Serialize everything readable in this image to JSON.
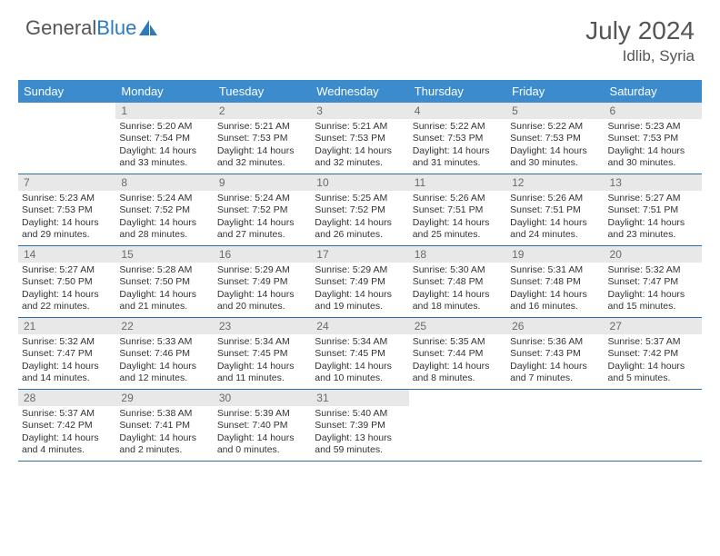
{
  "brand": {
    "part1": "General",
    "part2": "Blue",
    "logo_color": "#2c7bc0"
  },
  "title": {
    "month": "July 2024",
    "location": "Idlib, Syria"
  },
  "colors": {
    "header_bg": "#3b8bcd",
    "header_text": "#ffffff",
    "daynum_bg": "#e8e8e8",
    "daynum_text": "#6a6a6a",
    "week_divider": "#2c6ea9",
    "body_text": "#333333",
    "title_text": "#555555"
  },
  "day_headers": [
    "Sunday",
    "Monday",
    "Tuesday",
    "Wednesday",
    "Thursday",
    "Friday",
    "Saturday"
  ],
  "weeks": [
    [
      {
        "n": "",
        "sr": "",
        "ss": "",
        "dl": ""
      },
      {
        "n": "1",
        "sr": "Sunrise: 5:20 AM",
        "ss": "Sunset: 7:54 PM",
        "dl": "Daylight: 14 hours and 33 minutes."
      },
      {
        "n": "2",
        "sr": "Sunrise: 5:21 AM",
        "ss": "Sunset: 7:53 PM",
        "dl": "Daylight: 14 hours and 32 minutes."
      },
      {
        "n": "3",
        "sr": "Sunrise: 5:21 AM",
        "ss": "Sunset: 7:53 PM",
        "dl": "Daylight: 14 hours and 32 minutes."
      },
      {
        "n": "4",
        "sr": "Sunrise: 5:22 AM",
        "ss": "Sunset: 7:53 PM",
        "dl": "Daylight: 14 hours and 31 minutes."
      },
      {
        "n": "5",
        "sr": "Sunrise: 5:22 AM",
        "ss": "Sunset: 7:53 PM",
        "dl": "Daylight: 14 hours and 30 minutes."
      },
      {
        "n": "6",
        "sr": "Sunrise: 5:23 AM",
        "ss": "Sunset: 7:53 PM",
        "dl": "Daylight: 14 hours and 30 minutes."
      }
    ],
    [
      {
        "n": "7",
        "sr": "Sunrise: 5:23 AM",
        "ss": "Sunset: 7:53 PM",
        "dl": "Daylight: 14 hours and 29 minutes."
      },
      {
        "n": "8",
        "sr": "Sunrise: 5:24 AM",
        "ss": "Sunset: 7:52 PM",
        "dl": "Daylight: 14 hours and 28 minutes."
      },
      {
        "n": "9",
        "sr": "Sunrise: 5:24 AM",
        "ss": "Sunset: 7:52 PM",
        "dl": "Daylight: 14 hours and 27 minutes."
      },
      {
        "n": "10",
        "sr": "Sunrise: 5:25 AM",
        "ss": "Sunset: 7:52 PM",
        "dl": "Daylight: 14 hours and 26 minutes."
      },
      {
        "n": "11",
        "sr": "Sunrise: 5:26 AM",
        "ss": "Sunset: 7:51 PM",
        "dl": "Daylight: 14 hours and 25 minutes."
      },
      {
        "n": "12",
        "sr": "Sunrise: 5:26 AM",
        "ss": "Sunset: 7:51 PM",
        "dl": "Daylight: 14 hours and 24 minutes."
      },
      {
        "n": "13",
        "sr": "Sunrise: 5:27 AM",
        "ss": "Sunset: 7:51 PM",
        "dl": "Daylight: 14 hours and 23 minutes."
      }
    ],
    [
      {
        "n": "14",
        "sr": "Sunrise: 5:27 AM",
        "ss": "Sunset: 7:50 PM",
        "dl": "Daylight: 14 hours and 22 minutes."
      },
      {
        "n": "15",
        "sr": "Sunrise: 5:28 AM",
        "ss": "Sunset: 7:50 PM",
        "dl": "Daylight: 14 hours and 21 minutes."
      },
      {
        "n": "16",
        "sr": "Sunrise: 5:29 AM",
        "ss": "Sunset: 7:49 PM",
        "dl": "Daylight: 14 hours and 20 minutes."
      },
      {
        "n": "17",
        "sr": "Sunrise: 5:29 AM",
        "ss": "Sunset: 7:49 PM",
        "dl": "Daylight: 14 hours and 19 minutes."
      },
      {
        "n": "18",
        "sr": "Sunrise: 5:30 AM",
        "ss": "Sunset: 7:48 PM",
        "dl": "Daylight: 14 hours and 18 minutes."
      },
      {
        "n": "19",
        "sr": "Sunrise: 5:31 AM",
        "ss": "Sunset: 7:48 PM",
        "dl": "Daylight: 14 hours and 16 minutes."
      },
      {
        "n": "20",
        "sr": "Sunrise: 5:32 AM",
        "ss": "Sunset: 7:47 PM",
        "dl": "Daylight: 14 hours and 15 minutes."
      }
    ],
    [
      {
        "n": "21",
        "sr": "Sunrise: 5:32 AM",
        "ss": "Sunset: 7:47 PM",
        "dl": "Daylight: 14 hours and 14 minutes."
      },
      {
        "n": "22",
        "sr": "Sunrise: 5:33 AM",
        "ss": "Sunset: 7:46 PM",
        "dl": "Daylight: 14 hours and 12 minutes."
      },
      {
        "n": "23",
        "sr": "Sunrise: 5:34 AM",
        "ss": "Sunset: 7:45 PM",
        "dl": "Daylight: 14 hours and 11 minutes."
      },
      {
        "n": "24",
        "sr": "Sunrise: 5:34 AM",
        "ss": "Sunset: 7:45 PM",
        "dl": "Daylight: 14 hours and 10 minutes."
      },
      {
        "n": "25",
        "sr": "Sunrise: 5:35 AM",
        "ss": "Sunset: 7:44 PM",
        "dl": "Daylight: 14 hours and 8 minutes."
      },
      {
        "n": "26",
        "sr": "Sunrise: 5:36 AM",
        "ss": "Sunset: 7:43 PM",
        "dl": "Daylight: 14 hours and 7 minutes."
      },
      {
        "n": "27",
        "sr": "Sunrise: 5:37 AM",
        "ss": "Sunset: 7:42 PM",
        "dl": "Daylight: 14 hours and 5 minutes."
      }
    ],
    [
      {
        "n": "28",
        "sr": "Sunrise: 5:37 AM",
        "ss": "Sunset: 7:42 PM",
        "dl": "Daylight: 14 hours and 4 minutes."
      },
      {
        "n": "29",
        "sr": "Sunrise: 5:38 AM",
        "ss": "Sunset: 7:41 PM",
        "dl": "Daylight: 14 hours and 2 minutes."
      },
      {
        "n": "30",
        "sr": "Sunrise: 5:39 AM",
        "ss": "Sunset: 7:40 PM",
        "dl": "Daylight: 14 hours and 0 minutes."
      },
      {
        "n": "31",
        "sr": "Sunrise: 5:40 AM",
        "ss": "Sunset: 7:39 PM",
        "dl": "Daylight: 13 hours and 59 minutes."
      },
      {
        "n": "",
        "sr": "",
        "ss": "",
        "dl": ""
      },
      {
        "n": "",
        "sr": "",
        "ss": "",
        "dl": ""
      },
      {
        "n": "",
        "sr": "",
        "ss": "",
        "dl": ""
      }
    ]
  ]
}
